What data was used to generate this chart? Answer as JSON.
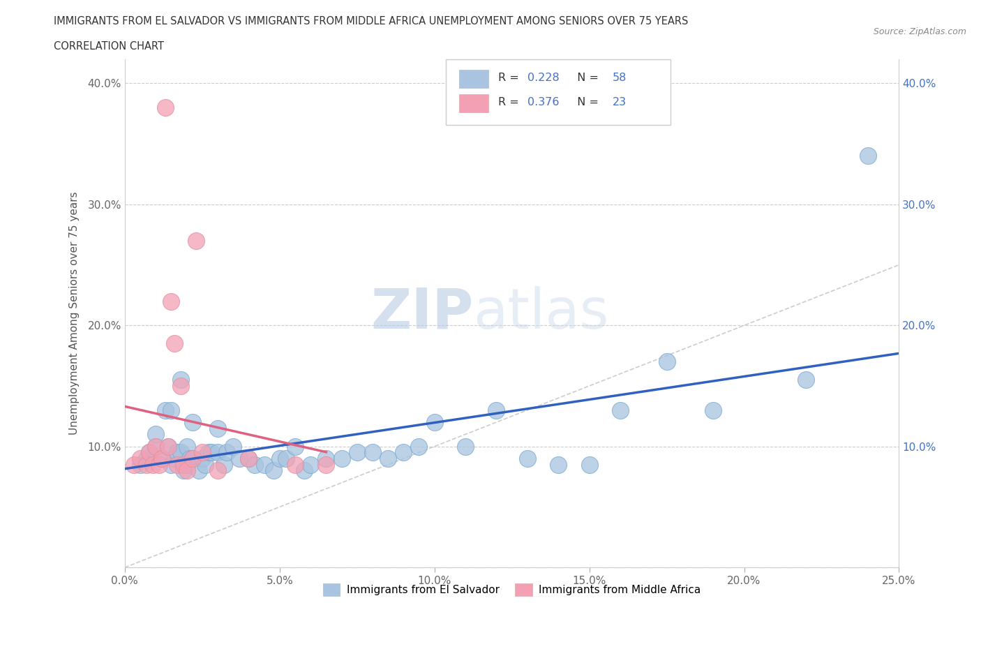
{
  "title_line1": "IMMIGRANTS FROM EL SALVADOR VS IMMIGRANTS FROM MIDDLE AFRICA UNEMPLOYMENT AMONG SENIORS OVER 75 YEARS",
  "title_line2": "CORRELATION CHART",
  "source_text": "Source: ZipAtlas.com",
  "ylabel": "Unemployment Among Seniors over 75 years",
  "watermark_zip": "ZIP",
  "watermark_atlas": "atlas",
  "legend_label_blue": "Immigrants from El Salvador",
  "legend_label_pink": "Immigrants from Middle Africa",
  "R_blue": 0.228,
  "N_blue": 58,
  "R_pink": 0.376,
  "N_pink": 23,
  "xlim": [
    0.0,
    0.25
  ],
  "ylim": [
    0.0,
    0.42
  ],
  "xticks": [
    0.0,
    0.05,
    0.1,
    0.15,
    0.2,
    0.25
  ],
  "xticklabels": [
    "0.0%",
    "5.0%",
    "10.0%",
    "15.0%",
    "20.0%",
    "25.0%"
  ],
  "yticks": [
    0.0,
    0.1,
    0.2,
    0.3,
    0.4
  ],
  "yticklabels_left": [
    "",
    "10.0%",
    "20.0%",
    "30.0%",
    "40.0%"
  ],
  "yticklabels_right": [
    "",
    "10.0%",
    "20.0%",
    "30.0%",
    "40.0%"
  ],
  "color_blue": "#a8c4e0",
  "color_pink": "#f4a0b4",
  "trendline_blue_color": "#3060c0",
  "trendline_pink_color": "#e06080",
  "blue_scatter_x": [
    0.005,
    0.007,
    0.008,
    0.01,
    0.01,
    0.012,
    0.013,
    0.014,
    0.015,
    0.015,
    0.016,
    0.017,
    0.018,
    0.018,
    0.019,
    0.02,
    0.02,
    0.021,
    0.022,
    0.022,
    0.024,
    0.025,
    0.026,
    0.027,
    0.028,
    0.03,
    0.03,
    0.032,
    0.033,
    0.035,
    0.037,
    0.04,
    0.042,
    0.045,
    0.048,
    0.05,
    0.052,
    0.055,
    0.058,
    0.06,
    0.065,
    0.07,
    0.075,
    0.08,
    0.085,
    0.09,
    0.095,
    0.1,
    0.11,
    0.12,
    0.13,
    0.14,
    0.15,
    0.16,
    0.175,
    0.19,
    0.22,
    0.24
  ],
  "blue_scatter_y": [
    0.085,
    0.09,
    0.095,
    0.1,
    0.11,
    0.09,
    0.13,
    0.1,
    0.085,
    0.13,
    0.09,
    0.095,
    0.095,
    0.155,
    0.08,
    0.085,
    0.1,
    0.09,
    0.09,
    0.12,
    0.08,
    0.09,
    0.085,
    0.095,
    0.095,
    0.095,
    0.115,
    0.085,
    0.095,
    0.1,
    0.09,
    0.09,
    0.085,
    0.085,
    0.08,
    0.09,
    0.09,
    0.1,
    0.08,
    0.085,
    0.09,
    0.09,
    0.095,
    0.095,
    0.09,
    0.095,
    0.1,
    0.12,
    0.1,
    0.13,
    0.09,
    0.085,
    0.085,
    0.13,
    0.17,
    0.13,
    0.155,
    0.34
  ],
  "pink_scatter_x": [
    0.003,
    0.005,
    0.007,
    0.008,
    0.009,
    0.01,
    0.011,
    0.012,
    0.013,
    0.014,
    0.015,
    0.016,
    0.017,
    0.018,
    0.019,
    0.02,
    0.022,
    0.023,
    0.025,
    0.03,
    0.04,
    0.055,
    0.065
  ],
  "pink_scatter_y": [
    0.085,
    0.09,
    0.085,
    0.095,
    0.085,
    0.1,
    0.085,
    0.09,
    0.38,
    0.1,
    0.22,
    0.185,
    0.085,
    0.15,
    0.085,
    0.08,
    0.09,
    0.27,
    0.095,
    0.08,
    0.09,
    0.085,
    0.085
  ]
}
